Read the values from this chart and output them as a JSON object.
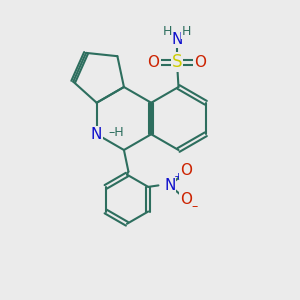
{
  "bg_color": "#ebebeb",
  "bond_color": "#2d6e5e",
  "bond_width": 1.5,
  "atom_colors": {
    "N": "#1010cc",
    "S": "#cccc00",
    "O": "#cc2200",
    "H": "#2d6e5e",
    "C": "#2d6e5e",
    "plus": "#1010cc",
    "minus": "#cc2200"
  }
}
